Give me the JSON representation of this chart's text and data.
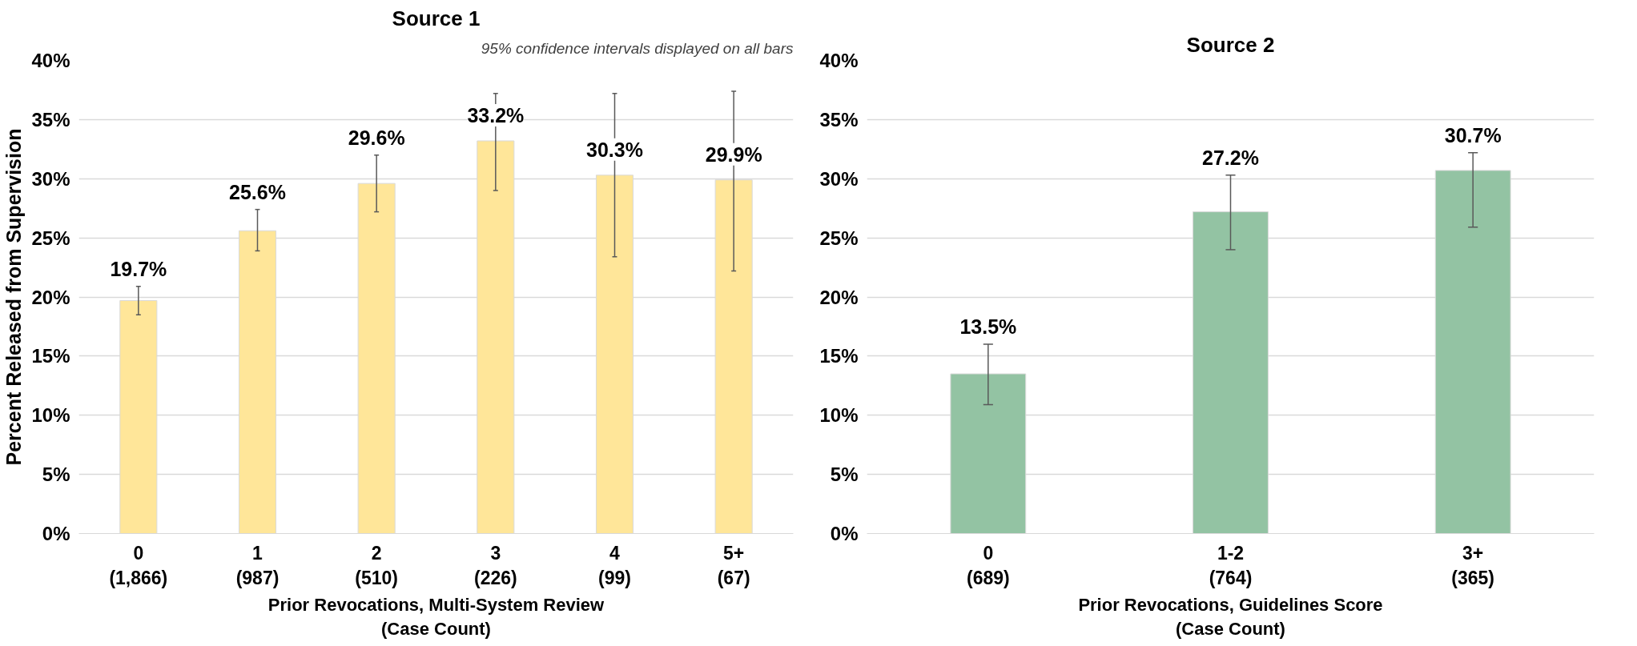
{
  "chart_data": [
    {
      "type": "bar",
      "title": "Source 1",
      "ylabel": "Percent Released from Supervision",
      "xlabel": "Prior Revocations, Multi-System Review\n(Case Count)",
      "annotations": [
        "95% confidence intervals displayed on all bars"
      ],
      "categories": [
        "0\n(1,866)",
        "1\n(987)",
        "2\n(510)",
        "3\n(226)",
        "4\n(99)",
        "5+\n(67)"
      ],
      "values": [
        19.7,
        25.6,
        29.6,
        33.2,
        30.3,
        29.9
      ],
      "value_labels": [
        "19.7%",
        "25.6%",
        "29.6%",
        "33.2%",
        "30.3%",
        "29.9%"
      ],
      "errors": [
        [
          18.5,
          20.9
        ],
        [
          23.9,
          27.4
        ],
        [
          27.2,
          32.0
        ],
        [
          29.0,
          37.2
        ],
        [
          23.4,
          37.2
        ],
        [
          22.2,
          37.4
        ]
      ],
      "color": "#ffe699",
      "ylim": [
        0,
        40
      ],
      "yticks": [
        {
          "value": 0,
          "label": "0%"
        },
        {
          "value": 5,
          "label": "5%"
        },
        {
          "value": 10,
          "label": "10%"
        },
        {
          "value": 15,
          "label": "15%"
        },
        {
          "value": 20,
          "label": "20%"
        },
        {
          "value": 25,
          "label": "25%"
        },
        {
          "value": 30,
          "label": "30%"
        },
        {
          "value": 35,
          "label": "35%"
        },
        {
          "value": 40,
          "label": "40%"
        }
      ],
      "grid": "y"
    },
    {
      "type": "bar",
      "title": "Source 2",
      "xlabel": "Prior Revocations, Guidelines Score\n(Case Count)",
      "categories": [
        "0\n(689)",
        "1-2\n(764)",
        "3+\n(365)"
      ],
      "values": [
        13.5,
        27.2,
        30.7
      ],
      "value_labels": [
        "13.5%",
        "27.2%",
        "30.7%"
      ],
      "errors": [
        [
          10.9,
          16.0
        ],
        [
          24.0,
          30.3
        ],
        [
          25.9,
          32.2
        ]
      ],
      "color": "#93c3a3",
      "ylim": [
        0,
        40
      ],
      "yticks": [
        {
          "value": 0,
          "label": "0%"
        },
        {
          "value": 5,
          "label": "5%"
        },
        {
          "value": 10,
          "label": "10%"
        },
        {
          "value": 15,
          "label": "15%"
        },
        {
          "value": 20,
          "label": "20%"
        },
        {
          "value": 25,
          "label": "25%"
        },
        {
          "value": 30,
          "label": "30%"
        },
        {
          "value": 35,
          "label": "35%"
        },
        {
          "value": 40,
          "label": "40%"
        }
      ],
      "grid": "y"
    }
  ]
}
